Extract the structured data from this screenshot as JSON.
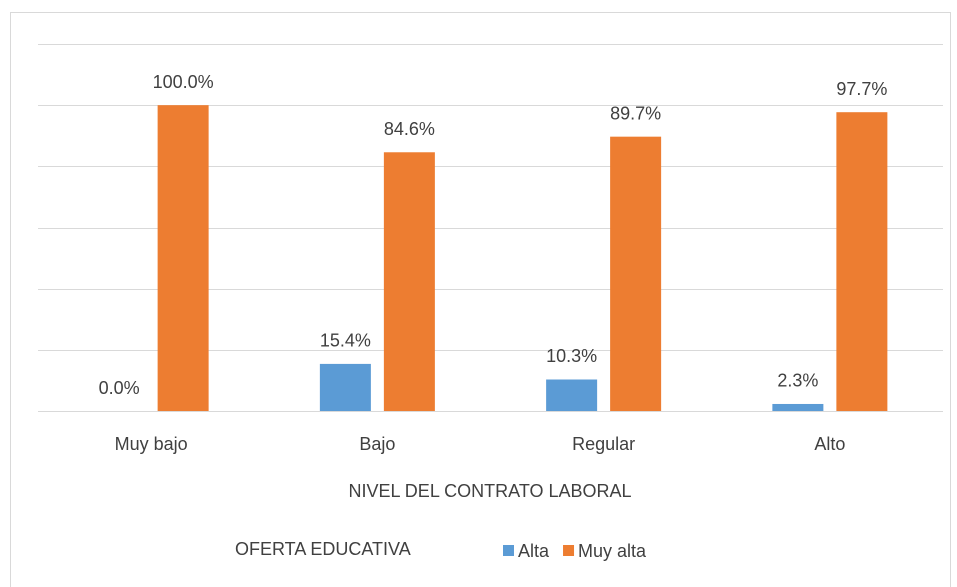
{
  "chart_data": {
    "type": "bar",
    "categories": [
      "Muy bajo",
      "Bajo",
      "Regular",
      "Alto"
    ],
    "series": [
      {
        "name": "Alta",
        "color": "#5b9bd5",
        "values": [
          0,
          15.4,
          10.3,
          2.3
        ],
        "value_labels": [
          "0.0%",
          "15.4%",
          "10.3%",
          "2.3%"
        ]
      },
      {
        "name": "Muy alta",
        "color": "#ed7d31",
        "values": [
          100,
          84.6,
          89.7,
          97.7
        ],
        "value_labels": [
          "100.0%",
          "84.6%",
          "89.7%",
          "97.7%"
        ]
      }
    ],
    "ylim": [
      0,
      120
    ],
    "yticks": [
      0,
      20,
      40,
      60,
      80,
      100,
      120
    ],
    "grid": true,
    "x_label": "NIVEL DEL CONTRATO LABORAL",
    "legend_title": "OFERTA EDUCATIVA",
    "legend": "bottom"
  }
}
